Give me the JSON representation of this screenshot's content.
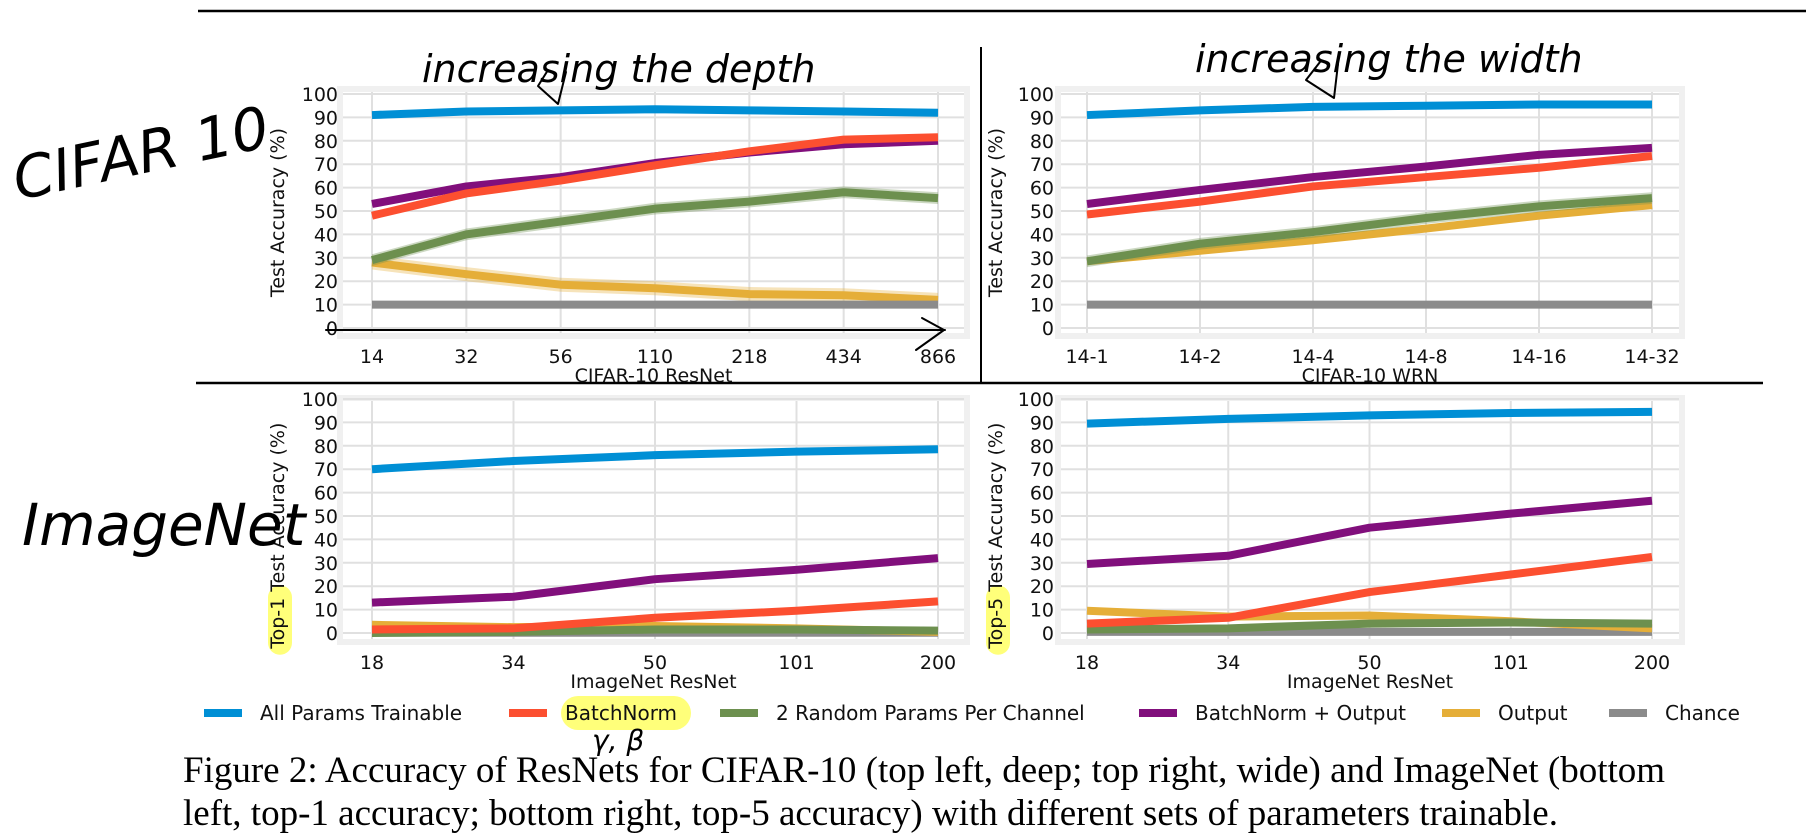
{
  "chart_data": [
    {
      "id": "cifar-resnet",
      "type": "line",
      "title": "",
      "xlabel": "CIFAR-10 ResNet",
      "ylabel": "Test Accuracy (%)",
      "ylabel_highlight": "",
      "ylim": [
        0,
        100
      ],
      "yticks": [
        0,
        10,
        20,
        30,
        40,
        50,
        60,
        70,
        80,
        90,
        100
      ],
      "grid": true,
      "categories": [
        "14",
        "32",
        "56",
        "110",
        "218",
        "434",
        "866"
      ],
      "series": [
        {
          "name": "All Params Trainable",
          "values": [
            91,
            92.5,
            93,
            93.5,
            93,
            92.5,
            92
          ],
          "band": 1.5
        },
        {
          "name": "Output",
          "values": [
            28,
            23,
            18.5,
            17,
            14.5,
            14,
            12
          ],
          "band": 3
        },
        {
          "name": "Chance",
          "values": [
            10,
            10,
            10,
            10,
            10,
            10,
            10
          ],
          "band": 0
        },
        {
          "name": "2 Random Params Per Channel",
          "values": [
            29,
            40,
            45.5,
            51,
            54,
            58,
            55.5
          ],
          "band": 2.5
        },
        {
          "name": "BatchNorm + Output",
          "values": [
            53,
            60.5,
            64.5,
            70.5,
            75,
            78.5,
            80
          ],
          "band": 1
        },
        {
          "name": "BatchNorm",
          "values": [
            48,
            57.5,
            63,
            69.5,
            75.5,
            80.5,
            81.5
          ],
          "band": 1
        }
      ]
    },
    {
      "id": "cifar-wrn",
      "type": "line",
      "title": "",
      "xlabel": "CIFAR-10 WRN",
      "ylabel": "Test Accuracy (%)",
      "ylabel_highlight": "",
      "ylim": [
        0,
        100
      ],
      "yticks": [
        0,
        10,
        20,
        30,
        40,
        50,
        60,
        70,
        80,
        90,
        100
      ],
      "grid": true,
      "categories": [
        "14-1",
        "14-2",
        "14-4",
        "14-8",
        "14-16",
        "14-32"
      ],
      "series": [
        {
          "name": "All Params Trainable",
          "values": [
            91,
            93,
            94.5,
            95,
            95.5,
            95.5
          ],
          "band": 0.5
        },
        {
          "name": "Output",
          "values": [
            28.5,
            33,
            37.5,
            42.5,
            48,
            52.5
          ],
          "band": 1
        },
        {
          "name": "Chance",
          "values": [
            10,
            10,
            10,
            10,
            10,
            10
          ],
          "band": 0
        },
        {
          "name": "2 Random Params Per Channel",
          "values": [
            28.5,
            36,
            41,
            47,
            52,
            55.5
          ],
          "band": 2.5
        },
        {
          "name": "BatchNorm + Output",
          "values": [
            53,
            59,
            64.5,
            69,
            74,
            77
          ],
          "band": 0.5
        },
        {
          "name": "BatchNorm",
          "values": [
            48.5,
            54,
            60.5,
            64.5,
            68.5,
            73.5
          ],
          "band": 0.5
        }
      ]
    },
    {
      "id": "imagenet-top1",
      "type": "line",
      "title": "",
      "xlabel": "ImageNet ResNet",
      "ylabel": "Test Accuracy (%)",
      "ylabel_highlight": "Top-1",
      "ylim": [
        0,
        100
      ],
      "yticks": [
        0,
        10,
        20,
        30,
        40,
        50,
        60,
        70,
        80,
        90,
        100
      ],
      "grid": true,
      "categories": [
        "18",
        "34",
        "50",
        "101",
        "200"
      ],
      "series": [
        {
          "name": "All Params Trainable",
          "values": [
            70,
            73.5,
            76,
            77.5,
            78.5
          ],
          "band": 0.5
        },
        {
          "name": "Chance",
          "values": [
            0.1,
            0.1,
            0.1,
            0.1,
            0.1
          ],
          "band": 0
        },
        {
          "name": "Output",
          "values": [
            3.5,
            2.5,
            3,
            2,
            0.5
          ],
          "band": 1
        },
        {
          "name": "2 Random Params Per Channel",
          "values": [
            0,
            0.5,
            1.5,
            1.5,
            1
          ],
          "band": 0.5
        },
        {
          "name": "BatchNorm + Output",
          "values": [
            13,
            15.5,
            23,
            27,
            32
          ],
          "band": 0.5
        },
        {
          "name": "BatchNorm",
          "values": [
            1.5,
            2,
            6.5,
            9.5,
            13.5
          ],
          "band": 0.5
        }
      ]
    },
    {
      "id": "imagenet-top5",
      "type": "line",
      "title": "",
      "xlabel": "ImageNet ResNet",
      "ylabel": "Test Accuracy (%)",
      "ylabel_highlight": "Top-5",
      "ylim": [
        0,
        100
      ],
      "yticks": [
        0,
        10,
        20,
        30,
        40,
        50,
        60,
        70,
        80,
        90,
        100
      ],
      "grid": true,
      "categories": [
        "18",
        "34",
        "50",
        "101",
        "200"
      ],
      "series": [
        {
          "name": "All Params Trainable",
          "values": [
            89.5,
            91.5,
            93,
            94,
            94.5
          ],
          "band": 0.5
        },
        {
          "name": "Chance",
          "values": [
            0.5,
            0.5,
            0.5,
            0.5,
            0.5
          ],
          "band": 0
        },
        {
          "name": "Output",
          "values": [
            9.5,
            7,
            7.5,
            5,
            2
          ],
          "band": 0.5
        },
        {
          "name": "2 Random Params Per Channel",
          "values": [
            1.5,
            2,
            4,
            4.5,
            4
          ],
          "band": 0.5
        },
        {
          "name": "BatchNorm + Output",
          "values": [
            29.5,
            33,
            45,
            51,
            56.5
          ],
          "band": 0.5
        },
        {
          "name": "BatchNorm",
          "values": [
            4,
            6.5,
            17.5,
            25,
            32.5
          ],
          "band": 0.5
        }
      ]
    }
  ],
  "series_colors": {
    "All Params Trainable": "#008fd5",
    "BatchNorm": "#fc4f30",
    "2 Random Params Per Channel": "#6d904f",
    "BatchNorm + Output": "#810f7c",
    "Output": "#e5ae38",
    "Chance": "#8b8b8b"
  },
  "legend": {
    "placement": "bottom",
    "entries": [
      "All Params Trainable",
      "BatchNorm",
      "2 Random Params Per Channel",
      "BatchNorm + Output",
      "Output",
      "Chance"
    ],
    "highlighted_entry": "BatchNorm"
  },
  "highlight_color": "#ffff7a",
  "annotations": {
    "row1_label": "CIFAR 10",
    "row2_label": "ImageNet",
    "col1_note": "increasing the depth",
    "col2_note": "increasing the width",
    "batchnorm_note": "γ, β"
  },
  "caption": {
    "line1": "Figure 2: Accuracy of ResNets for CIFAR-10 (top left, deep; top right, wide) and ImageNet (bottom",
    "line2": "left, top-1 accuracy; bottom right, top-5 accuracy) with different sets of parameters trainable."
  }
}
